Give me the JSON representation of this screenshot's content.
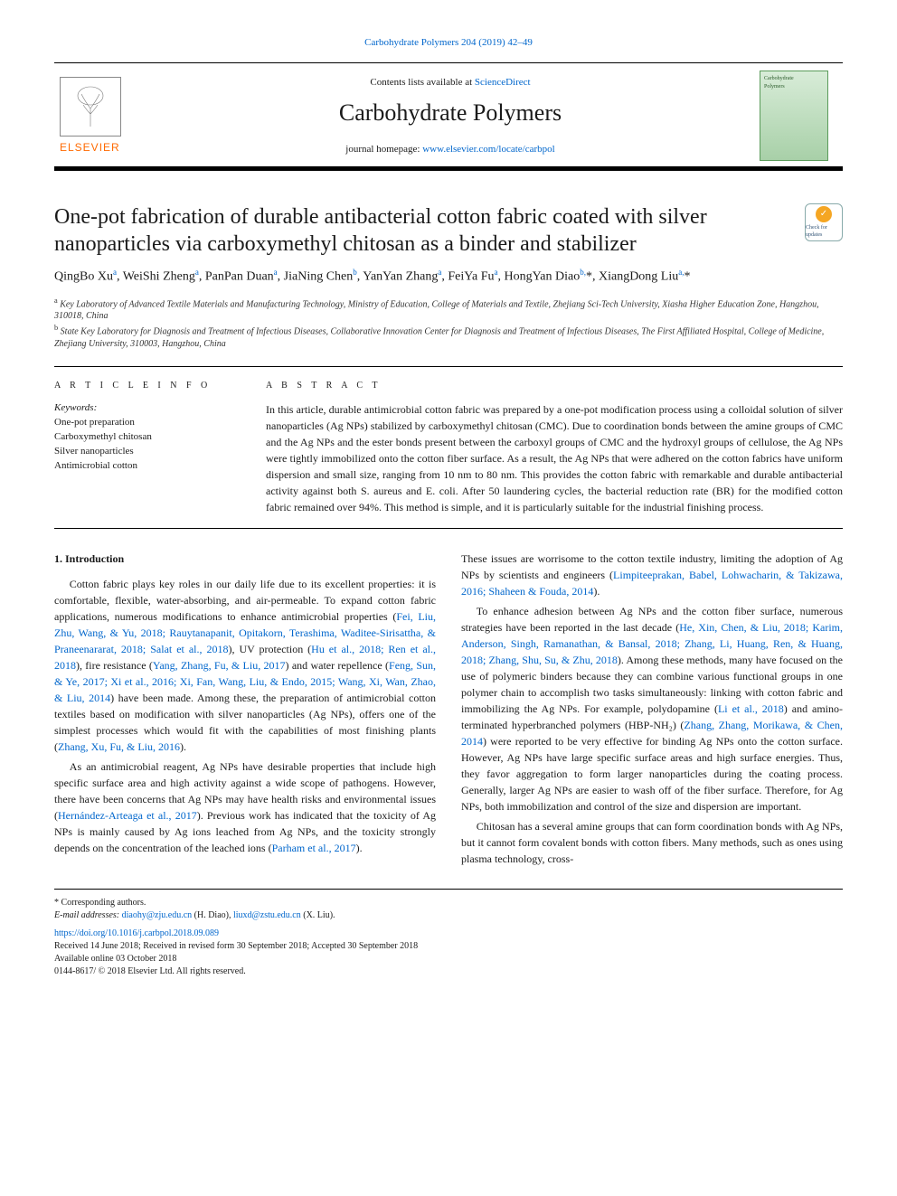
{
  "journal": {
    "citation_line": "Carbohydrate Polymers 204 (2019) 42–49",
    "contents_prefix": "Contents lists available at ",
    "contents_link": "ScienceDirect",
    "name": "Carbohydrate Polymers",
    "homepage_prefix": "journal homepage: ",
    "homepage_url": "www.elsevier.com/locate/carbpol",
    "publisher": "ELSEVIER",
    "cover_text_top": "Carbohydrate",
    "cover_text_bottom": "Polymers"
  },
  "article": {
    "title": "One-pot fabrication of durable antibacterial cotton fabric coated with silver nanoparticles via carboxymethyl chitosan as a binder and stabilizer",
    "check_badge": "Check for updates",
    "authors_html": "QingBo Xu<sup>a</sup>, WeiShi Zheng<sup>a</sup>, PanPan Duan<sup>a</sup>, JiaNing Chen<sup>b</sup>, YanYan Zhang<sup>a</sup>, FeiYa Fu<sup>a</sup>, HongYan Diao<sup>b,</sup>*, XiangDong Liu<sup>a,</sup>*",
    "affiliations": [
      {
        "sup": "a",
        "text": "Key Laboratory of Advanced Textile Materials and Manufacturing Technology, Ministry of Education, College of Materials and Textile, Zhejiang Sci-Tech University, Xiasha Higher Education Zone, Hangzhou, 310018, China"
      },
      {
        "sup": "b",
        "text": "State Key Laboratory for Diagnosis and Treatment of Infectious Diseases, Collaborative Innovation Center for Diagnosis and Treatment of Infectious Diseases, The First Affiliated Hospital, College of Medicine, Zhejiang University, 310003, Hangzhou, China"
      }
    ]
  },
  "info": {
    "heading": "A R T I C L E  I N F O",
    "kw_label": "Keywords:",
    "keywords": [
      "One-pot preparation",
      "Carboxymethyl chitosan",
      "Silver nanoparticles",
      "Antimicrobial cotton"
    ]
  },
  "abstract": {
    "heading": "A B S T R A C T",
    "text": "In this article, durable antimicrobial cotton fabric was prepared by a one-pot modification process using a colloidal solution of silver nanoparticles (Ag NPs) stabilized by carboxymethyl chitosan (CMC). Due to coordination bonds between the amine groups of CMC and the Ag NPs and the ester bonds present between the carboxyl groups of CMC and the hydroxyl groups of cellulose, the Ag NPs were tightly immobilized onto the cotton fiber surface. As a result, the Ag NPs that were adhered on the cotton fabrics have uniform dispersion and small size, ranging from 10 nm to 80 nm. This provides the cotton fabric with remarkable and durable antibacterial activity against both S. aureus and E. coli. After 50 laundering cycles, the bacterial reduction rate (BR) for the modified cotton fabric remained over 94%. This method is simple, and it is particularly suitable for the industrial finishing process."
  },
  "body": {
    "sec1_heading": "1. Introduction",
    "p1": "Cotton fabric plays key roles in our daily life due to its excellent properties: it is comfortable, flexible, water-absorbing, and air-permeable. To expand cotton fabric applications, numerous modifications to enhance antimicrobial properties (Fei, Liu, Zhu, Wang, & Yu, 2018; Rauytanapanit, Opitakorn, Terashima, Waditee-Sirisattha, & Praneenararat, 2018; Salat et al., 2018), UV protection (Hu et al., 2018; Ren et al., 2018), fire resistance (Yang, Zhang, Fu, & Liu, 2017) and water repellence (Feng, Sun, & Ye, 2017; Xi et al., 2016; Xi, Fan, Wang, Liu, & Endo, 2015; Wang, Xi, Wan, Zhao, & Liu, 2014) have been made. Among these, the preparation of antimicrobial cotton textiles based on modification with silver nanoparticles (Ag NPs), offers one of the simplest processes which would fit with the capabilities of most finishing plants (Zhang, Xu, Fu, & Liu, 2016).",
    "p2": "As an antimicrobial reagent, Ag NPs have desirable properties that include high specific surface area and high activity against a wide scope of pathogens. However, there have been concerns that Ag NPs may have health risks and environmental issues (Hernández-Arteaga et al., 2017). Previous work has indicated that the toxicity of Ag NPs is mainly caused by Ag ions leached from Ag NPs, and the toxicity strongly depends on the concentration of the leached ions (Parham et al., 2017).",
    "p3": "These issues are worrisome to the cotton textile industry, limiting the adoption of Ag NPs by scientists and engineers (Limpiteeprakan, Babel, Lohwacharin, & Takizawa, 2016; Shaheen & Fouda, 2014).",
    "p4": "To enhance adhesion between Ag NPs and the cotton fiber surface, numerous strategies have been reported in the last decade (He, Xin, Chen, & Liu, 2018; Karim, Anderson, Singh, Ramanathan, & Bansal, 2018; Zhang, Li, Huang, Ren, & Huang, 2018; Zhang, Shu, Su, & Zhu, 2018). Among these methods, many have focused on the use of polymeric binders because they can combine various functional groups in one polymer chain to accomplish two tasks simultaneously: linking with cotton fabric and immobilizing the Ag NPs. For example, polydopamine (Li et al., 2018) and amino-terminated hyperbranched polymers (HBP-NH₂) (Zhang, Zhang, Morikawa, & Chen, 2014) were reported to be very effective for binding Ag NPs onto the cotton surface. However, Ag NPs have large specific surface areas and high surface energies. Thus, they favor aggregation to form larger nanoparticles during the coating process. Generally, larger Ag NPs are easier to wash off of the fiber surface. Therefore, for Ag NPs, both immobilization and control of the size and dispersion are important.",
    "p5": "Chitosan has a several amine groups that can form coordination bonds with Ag NPs, but it cannot form covalent bonds with cotton fibers. Many methods, such as ones using plasma technology, cross-"
  },
  "footer": {
    "corr_label": "* Corresponding authors.",
    "email_label": "E-mail addresses: ",
    "email1": "diaohy@zju.edu.cn",
    "email1_who": " (H. Diao), ",
    "email2": "liuxd@zstu.edu.cn",
    "email2_who": " (X. Liu).",
    "doi": "https://doi.org/10.1016/j.carbpol.2018.09.089",
    "history": "Received 14 June 2018; Received in revised form 30 September 2018; Accepted 30 September 2018",
    "online": "Available online 03 October 2018",
    "copyright": "0144-8617/ © 2018 Elsevier Ltd. All rights reserved."
  },
  "style": {
    "link_color": "#0066cc",
    "text_color": "#1a1a1a",
    "accent_orange": "#ff6a00",
    "rule_color": "#000000",
    "background": "#ffffff",
    "title_fontsize": 24,
    "journal_fontsize": 26,
    "body_fontsize": 12,
    "abstract_fontsize": 12,
    "small_fontsize": 10,
    "column_gap": 28
  }
}
